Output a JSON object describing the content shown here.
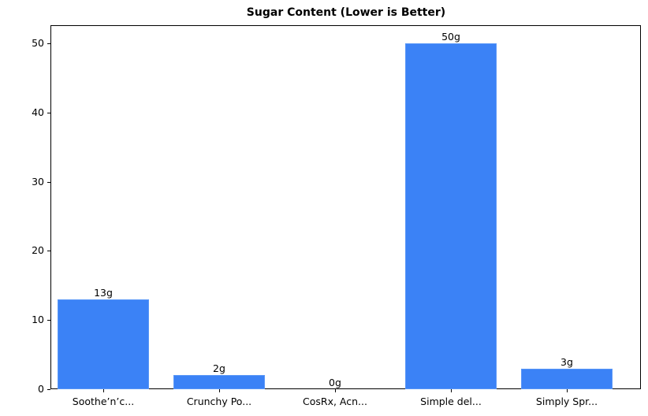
{
  "chart_data": {
    "type": "bar",
    "title": "Sugar Content (Lower is Better)",
    "xlabel": "",
    "ylabel": "",
    "categories": [
      "Soothe’n’c...",
      "Crunchy Po...",
      "CosRx, Acn...",
      "Simple del...",
      "Simply Spr..."
    ],
    "values": [
      13,
      2,
      0,
      50,
      3
    ],
    "data_labels": [
      "13g",
      "2g",
      "0g",
      "50g",
      "3g"
    ],
    "yticks": [
      "0",
      "10",
      "20",
      "30",
      "40",
      "50"
    ],
    "ylim": [
      0,
      52.5
    ],
    "grid": false,
    "legend": null,
    "bar_color": "#3b82f6"
  }
}
